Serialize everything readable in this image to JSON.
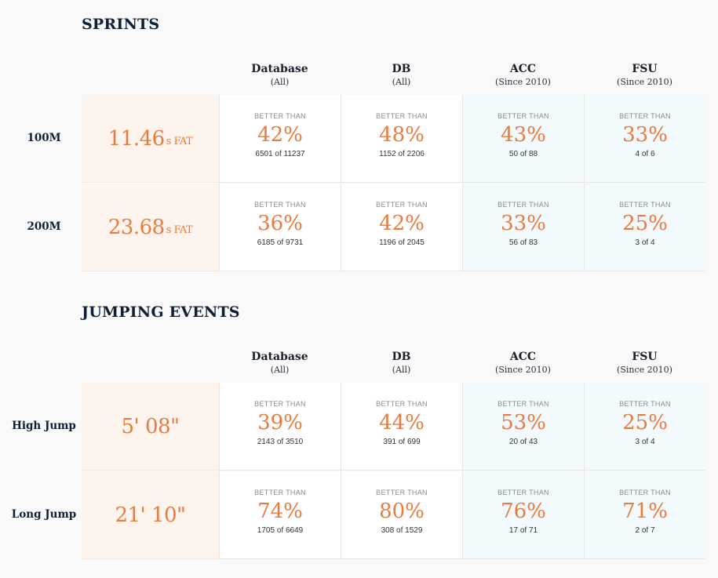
{
  "colors": {
    "accent": "#ea7a3e",
    "mark_bg": "#fdf4ee",
    "conf_bg": "#f3fafd",
    "heading": "#0f1f38"
  },
  "columns": [
    {
      "name": "Database",
      "sub": "(All)"
    },
    {
      "name": "DB",
      "sub": "(All)"
    },
    {
      "name": "ACC",
      "sub": "(Since 2010)"
    },
    {
      "name": "FSU",
      "sub": "(Since 2010)"
    }
  ],
  "better_than": "BETTER THAN",
  "sections": [
    {
      "title": "SPRINTS",
      "rows": [
        {
          "event": "100M",
          "mark": "11.46",
          "unit": "s FAT",
          "cells": [
            {
              "pct": "42%",
              "count": "6501 of 11237"
            },
            {
              "pct": "48%",
              "count": "1152 of 2206"
            },
            {
              "pct": "43%",
              "count": "50 of 88"
            },
            {
              "pct": "33%",
              "count": "4 of 6"
            }
          ]
        },
        {
          "event": "200M",
          "mark": "23.68",
          "unit": "s FAT",
          "cells": [
            {
              "pct": "36%",
              "count": "6185 of 9731"
            },
            {
              "pct": "42%",
              "count": "1196 of 2045"
            },
            {
              "pct": "33%",
              "count": "56 of 83"
            },
            {
              "pct": "25%",
              "count": "3 of 4"
            }
          ]
        }
      ]
    },
    {
      "title": "JUMPING EVENTS",
      "rows": [
        {
          "event": "High Jump",
          "mark": "5' 08\"",
          "unit": "",
          "cells": [
            {
              "pct": "39%",
              "count": "2143 of 3510"
            },
            {
              "pct": "44%",
              "count": "391 of 699"
            },
            {
              "pct": "53%",
              "count": "20 of 43"
            },
            {
              "pct": "25%",
              "count": "3 of 4"
            }
          ]
        },
        {
          "event": "Long Jump",
          "mark": "21' 10\"",
          "unit": "",
          "cells": [
            {
              "pct": "74%",
              "count": "1705 of 6649"
            },
            {
              "pct": "80%",
              "count": "308 of 1529"
            },
            {
              "pct": "76%",
              "count": "17 of 71"
            },
            {
              "pct": "71%",
              "count": "2 of 7"
            }
          ]
        }
      ]
    }
  ]
}
